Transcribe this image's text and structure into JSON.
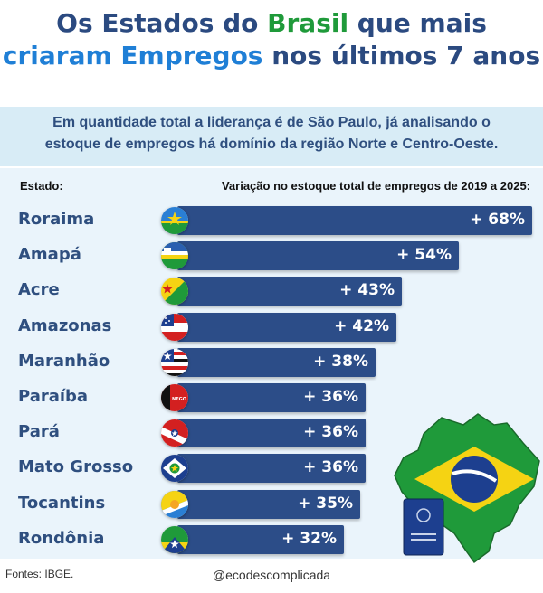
{
  "title": {
    "line1_a": "Os Estados do ",
    "line1_b": "Brasil",
    "line1_c": " que mais",
    "line2_a": "criaram Empregos",
    "line2_b": " nos últimos 7 anos"
  },
  "subtitle": {
    "line1": "Em quantidade total a liderança é de São Paulo, já analisando o",
    "line2": "estoque de empregos há domínio da região Norte e Centro-Oeste."
  },
  "colors": {
    "bar": "#2c4d88",
    "title_dark": "#2b4a80",
    "title_green": "#1f9a3a",
    "title_blue": "#1f7fd6",
    "panel": "#eaf4fb"
  },
  "chart_data": {
    "type": "bar",
    "orientation": "horizontal",
    "header_left": "Estado:",
    "header_right": "Variação no estoque total de empregos de 2019 a 2025:",
    "categories": [
      "Roraima",
      "Amapá",
      "Acre",
      "Amazonas",
      "Maranhão",
      "Paraíba",
      "Pará",
      "Mato Grosso",
      "Tocantins",
      "Rondônia"
    ],
    "values": [
      68,
      54,
      43,
      42,
      38,
      36,
      36,
      36,
      35,
      32
    ],
    "labels": [
      "+ 68%",
      "+ 54%",
      "+ 43%",
      "+ 42%",
      "+ 38%",
      "+ 36%",
      "+ 36%",
      "+ 36%",
      "+ 35%",
      "+ 32%"
    ],
    "unit": "%",
    "xlim": [
      0,
      68
    ]
  },
  "flags": [
    "roraima-flag-icon",
    "amapa-flag-icon",
    "acre-flag-icon",
    "amazonas-flag-icon",
    "maranhao-flag-icon",
    "paraiba-flag-icon",
    "para-flag-icon",
    "mato-grosso-flag-icon",
    "tocantins-flag-icon",
    "rondonia-flag-icon"
  ],
  "paraiba_flag_text": "NEGO",
  "footer": {
    "source": "Fontes: IBGE.",
    "handle": "@ecodescomplicada"
  }
}
